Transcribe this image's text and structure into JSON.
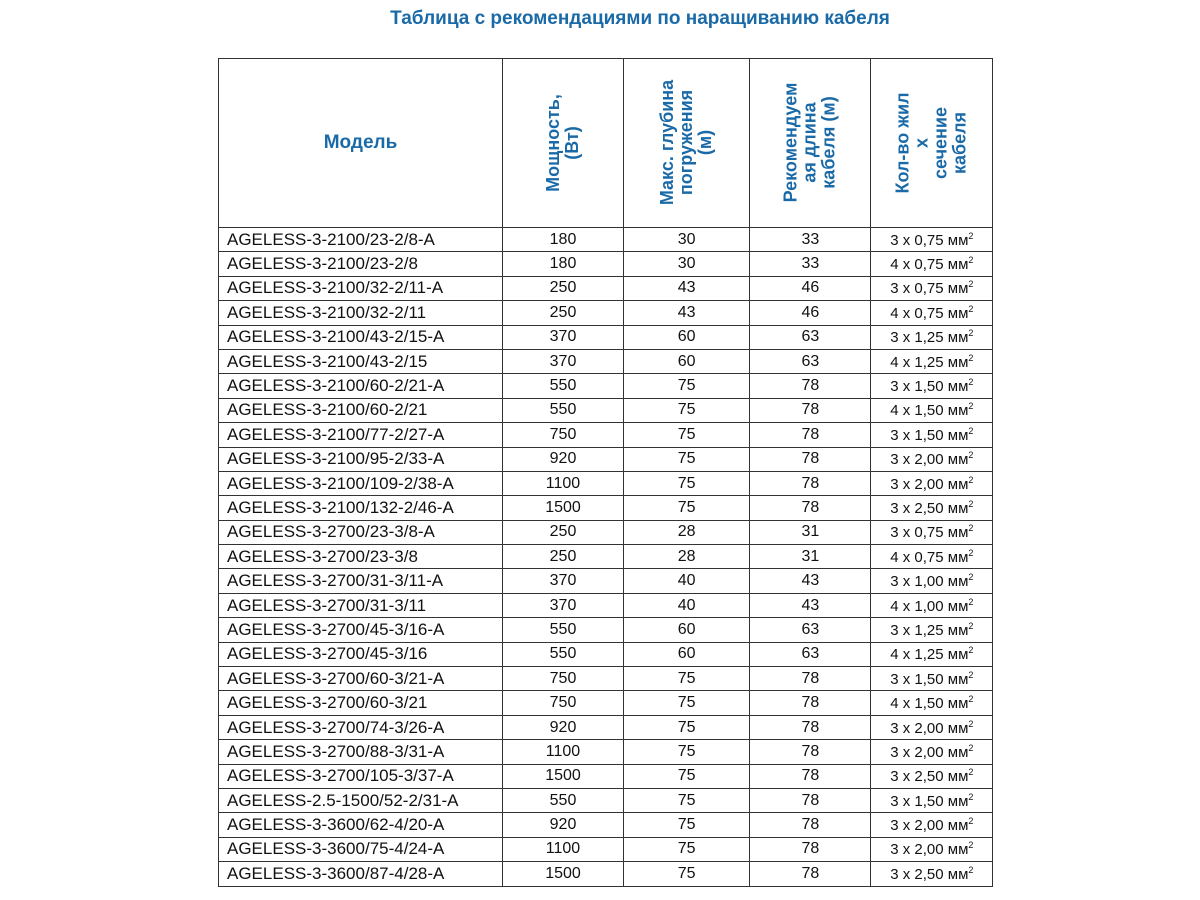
{
  "title": "Таблица с рекомендациями по наращиванию кабеля",
  "headers": {
    "model": "Модель",
    "power": "Мощность,\n(Вт)",
    "depth": "Макс. глубина\nпогружения\n(м)",
    "length": "Рекомендуем\nая длина\nкабеля (м)",
    "cable": "Кол-во жил\nх\nсечение\nкабеля"
  },
  "rows": [
    [
      "AGELESS-3-2100/23-2/8-A",
      "180",
      "30",
      "33",
      "3 х 0,75 мм"
    ],
    [
      "AGELESS-3-2100/23-2/8",
      "180",
      "30",
      "33",
      "4 х 0,75 мм"
    ],
    [
      "AGELESS-3-2100/32-2/11-A",
      "250",
      "43",
      "46",
      "3 х 0,75 мм"
    ],
    [
      "AGELESS-3-2100/32-2/11",
      "250",
      "43",
      "46",
      "4 х 0,75 мм"
    ],
    [
      "AGELESS-3-2100/43-2/15-A",
      "370",
      "60",
      "63",
      "3 х 1,25 мм"
    ],
    [
      "AGELESS-3-2100/43-2/15",
      "370",
      "60",
      "63",
      "4 х 1,25 мм"
    ],
    [
      "AGELESS-3-2100/60-2/21-A",
      "550",
      "75",
      "78",
      "3 х 1,50 мм"
    ],
    [
      "AGELESS-3-2100/60-2/21",
      "550",
      "75",
      "78",
      "4 х 1,50 мм"
    ],
    [
      "AGELESS-3-2100/77-2/27-A",
      "750",
      "75",
      "78",
      "3 х 1,50 мм"
    ],
    [
      "AGELESS-3-2100/95-2/33-A",
      "920",
      "75",
      "78",
      "3 х 2,00 мм"
    ],
    [
      "AGELESS-3-2100/109-2/38-A",
      "1100",
      "75",
      "78",
      "3 х 2,00 мм"
    ],
    [
      "AGELESS-3-2100/132-2/46-A",
      "1500",
      "75",
      "78",
      "3 х 2,50 мм"
    ],
    [
      "AGELESS-3-2700/23-3/8-A",
      "250",
      "28",
      "31",
      "3 х 0,75 мм"
    ],
    [
      "AGELESS-3-2700/23-3/8",
      "250",
      "28",
      "31",
      "4 х 0,75 мм"
    ],
    [
      "AGELESS-3-2700/31-3/11-A",
      "370",
      "40",
      "43",
      "3 х 1,00 мм"
    ],
    [
      "AGELESS-3-2700/31-3/11",
      "370",
      "40",
      "43",
      "4 х 1,00 мм"
    ],
    [
      "AGELESS-3-2700/45-3/16-A",
      "550",
      "60",
      "63",
      "3 х 1,25 мм"
    ],
    [
      "AGELESS-3-2700/45-3/16",
      "550",
      "60",
      "63",
      "4 х 1,25 мм"
    ],
    [
      "AGELESS-3-2700/60-3/21-A",
      "750",
      "75",
      "78",
      "3 х 1,50 мм"
    ],
    [
      "AGELESS-3-2700/60-3/21",
      "750",
      "75",
      "78",
      "4 х 1,50 мм"
    ],
    [
      "AGELESS-3-2700/74-3/26-A",
      "920",
      "75",
      "78",
      "3 х 2,00 мм"
    ],
    [
      "AGELESS-3-2700/88-3/31-A",
      "1100",
      "75",
      "78",
      "3 х 2,00 мм"
    ],
    [
      "AGELESS-3-2700/105-3/37-A",
      "1500",
      "75",
      "78",
      "3 х 2,50 мм"
    ],
    [
      "AGELESS-2.5-1500/52-2/31-A",
      "550",
      "75",
      "78",
      "3 х 1,50 мм"
    ],
    [
      "AGELESS-3-3600/62-4/20-A",
      "920",
      "75",
      "78",
      "3 х 2,00 мм"
    ],
    [
      "AGELESS-3-3600/75-4/24-A",
      "1100",
      "75",
      "78",
      "3 х 2,00 мм"
    ],
    [
      "AGELESS-3-3600/87-4/28-A",
      "1500",
      "75",
      "78",
      "3 х 2,50 мм"
    ]
  ],
  "unit_superscript": "2"
}
